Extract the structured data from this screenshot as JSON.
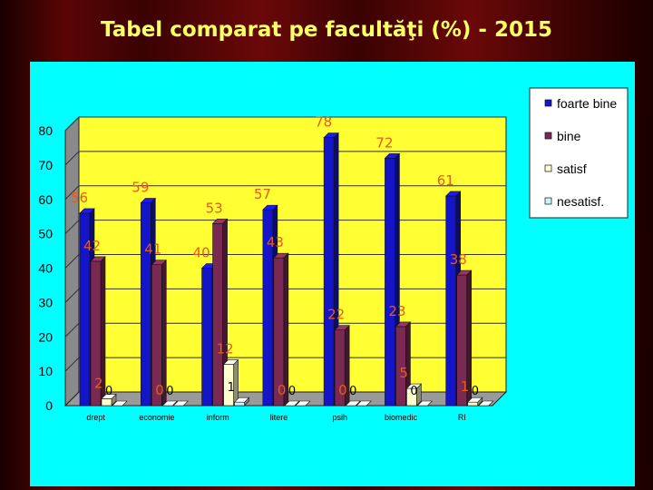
{
  "slide": {
    "title": "Tabel comparat pe facultăţi (%) - 2015"
  },
  "colors": {
    "panel": "#00FFFF",
    "plot": "#FFFF33",
    "foarte bine": "#1515C8",
    "bine": "#7A2A52",
    "satisf": "#FFFFD0",
    "nesatisf.": "#CCF2FF",
    "data_label": "#E85A1A"
  },
  "chart_data": {
    "type": "bar",
    "style": "3d-clustered",
    "categories": [
      "drept",
      "economie",
      "inform",
      "litere",
      "psih",
      "biomedic",
      "RI"
    ],
    "series": [
      {
        "name": "foarte bine",
        "values": [
          56,
          59,
          40,
          57,
          78,
          72,
          61
        ]
      },
      {
        "name": "bine",
        "values": [
          42,
          41,
          53,
          43,
          22,
          23,
          38
        ]
      },
      {
        "name": "satisf",
        "values": [
          2,
          0,
          12,
          0,
          0,
          5,
          1
        ]
      },
      {
        "name": "nesatisf.",
        "values": [
          0,
          0,
          1,
          0,
          0,
          0,
          0
        ]
      }
    ],
    "ylim": [
      0,
      80
    ],
    "yticks": [
      0,
      10,
      20,
      30,
      40,
      50,
      60,
      70,
      80
    ],
    "title": "",
    "xlabel": "",
    "ylabel": "",
    "legend": "top-right",
    "grid": true,
    "data_labels": true
  }
}
